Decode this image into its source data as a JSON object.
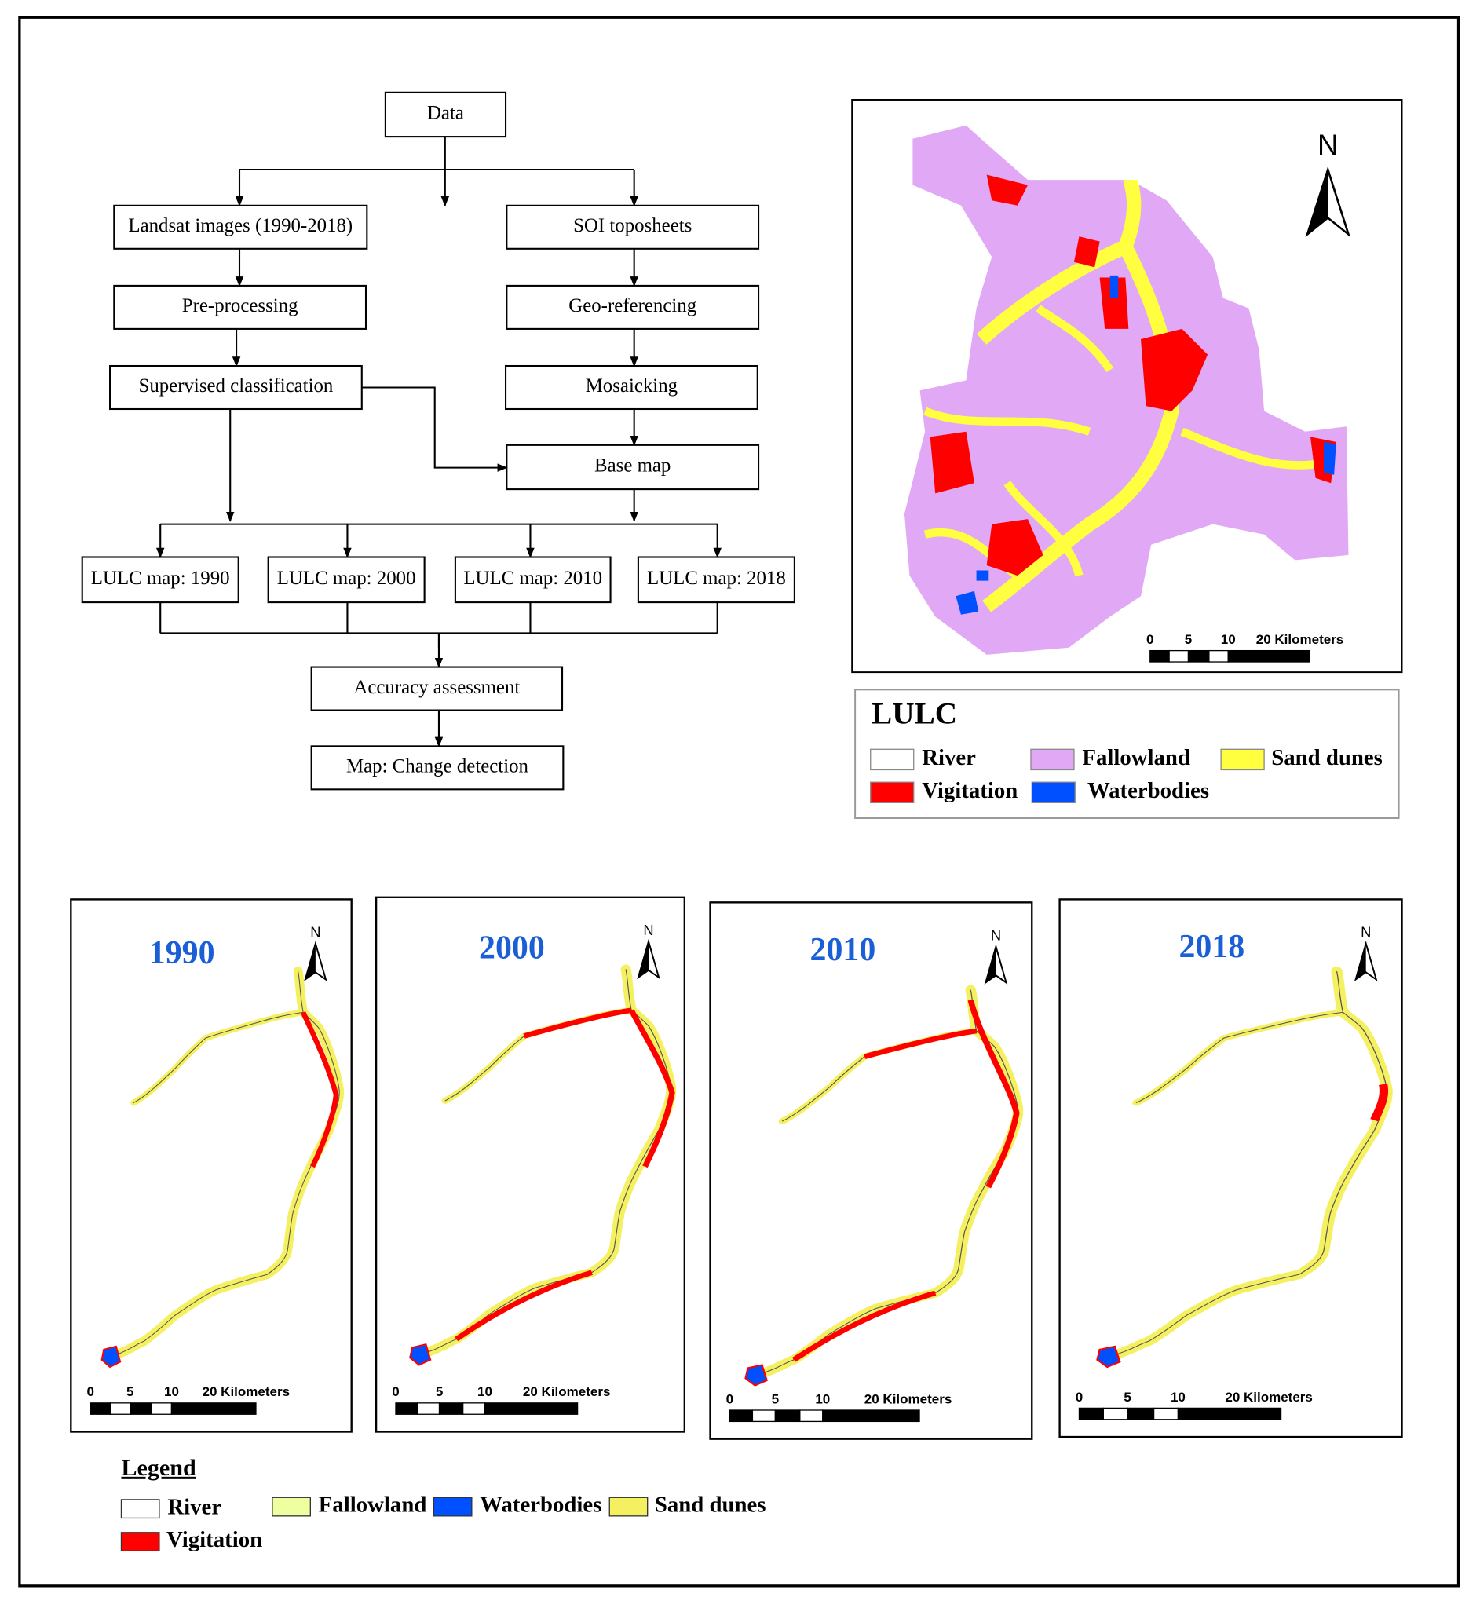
{
  "flowchart": {
    "nodes": [
      "Data",
      "Landsat images (1990-2018)",
      "SOI toposheets",
      "Pre-processing",
      "Geo-referencing",
      "Supervised classification",
      "Mosaicking",
      "Base map",
      "LULC map: 1990",
      "LULC map: 2000",
      "LULC map: 2010",
      "LULC map: 2018",
      "Accuracy assessment",
      "Map: Change detection"
    ]
  },
  "main_map": {
    "north": "N",
    "scale": [
      "0",
      "5",
      "10",
      "20 Kilometers"
    ],
    "legend": {
      "title": "LULC",
      "items": [
        "River",
        "Fallowland",
        "Sand dunes",
        "Vigitation",
        "Waterbodies"
      ]
    }
  },
  "year_maps": [
    {
      "year": "1990",
      "north": "N",
      "scale": [
        "0",
        "5",
        "10",
        "20 Kilometers"
      ]
    },
    {
      "year": "2000",
      "north": "N",
      "scale": [
        "0",
        "5",
        "10",
        "20 Kilometers"
      ]
    },
    {
      "year": "2010",
      "north": "N",
      "scale": [
        "0",
        "5",
        "10",
        "20 Kilometers"
      ]
    },
    {
      "year": "2018",
      "north": "N",
      "scale": [
        "0",
        "5",
        "10",
        "20 Kilometers"
      ]
    }
  ],
  "legend": {
    "title": "Legend",
    "items": [
      "River",
      "Fallowland",
      "Waterbodies",
      "Sand dunes",
      "Vigitation"
    ]
  }
}
